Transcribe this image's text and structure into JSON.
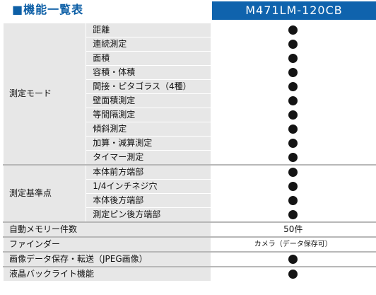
{
  "header": {
    "title": "■機能一覧表",
    "model": "M471LM-120CB"
  },
  "categories": {
    "measure_mode": "測定モード",
    "measure_base": "測定基準点"
  },
  "measure_mode_items": [
    "距離",
    "連続測定",
    "面積",
    "容積・体積",
    "間接・ピタゴラス（4種）",
    "壁面積測定",
    "等間隔測定",
    "傾斜測定",
    "加算・減算測定",
    "タイマー測定"
  ],
  "measure_base_items": [
    "本体前方端部",
    "1/4インチネジ穴",
    "本体後方端部",
    "測定ピン後方端部"
  ],
  "other_rows": {
    "memory_label": "自動メモリー件数",
    "memory_value": "50件",
    "finder_label": "ファインダー",
    "finder_value": "カメラ（データ保存可）",
    "image_label": "画像データ保存・転送（JPEG画像）",
    "backlight_label": "液晶バックライト機能"
  },
  "supported_mark": "filled-circle-icon"
}
